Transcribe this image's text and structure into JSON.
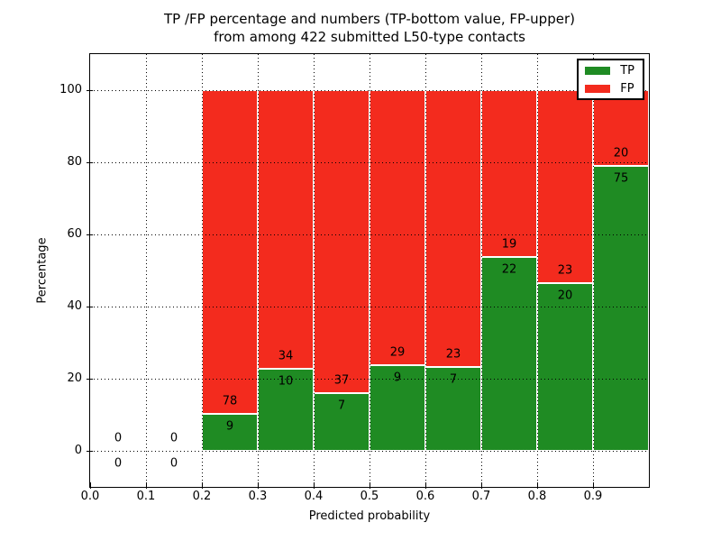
{
  "figure": {
    "title_line1": "TP /FP percentage and numbers (TP-bottom value, FP-upper)",
    "title_line2": "from among 422 submitted L50-type contacts",
    "xlabel": "Predicted probability",
    "ylabel": "Percentage"
  },
  "chart_data": {
    "type": "bar",
    "stacked": true,
    "normalized": "each non-empty bin scaled to 100%",
    "title": "TP /FP percentage and numbers (TP-bottom value, FP-upper) from among 422 submitted L50-type contacts",
    "xlabel": "Predicted probability",
    "ylabel": "Percentage",
    "bin_edges": [
      0.0,
      0.1,
      0.2,
      0.3,
      0.4,
      0.5,
      0.6,
      0.7,
      0.8,
      0.9,
      1.0
    ],
    "series": [
      {
        "name": "TP",
        "color": "#1f8b23",
        "counts": [
          0,
          0,
          9,
          10,
          7,
          9,
          7,
          22,
          20,
          75
        ]
      },
      {
        "name": "FP",
        "color": "#f32b1e",
        "counts": [
          0,
          0,
          78,
          34,
          37,
          29,
          23,
          19,
          23,
          20
        ]
      }
    ],
    "total_submitted": 422,
    "xlim": [
      0.0,
      1.0
    ],
    "ylim": [
      -10,
      110
    ],
    "xticks": [
      "0.0",
      "0.1",
      "0.2",
      "0.3",
      "0.4",
      "0.5",
      "0.6",
      "0.7",
      "0.8",
      "0.9"
    ],
    "yticks": [
      0,
      20,
      40,
      60,
      80,
      100
    ],
    "grid": "dotted black, both axes, drawn over bars",
    "bar_edge_color": "#ffffff",
    "legend_position": "upper right",
    "legend_entries": [
      "TP",
      "FP"
    ]
  }
}
